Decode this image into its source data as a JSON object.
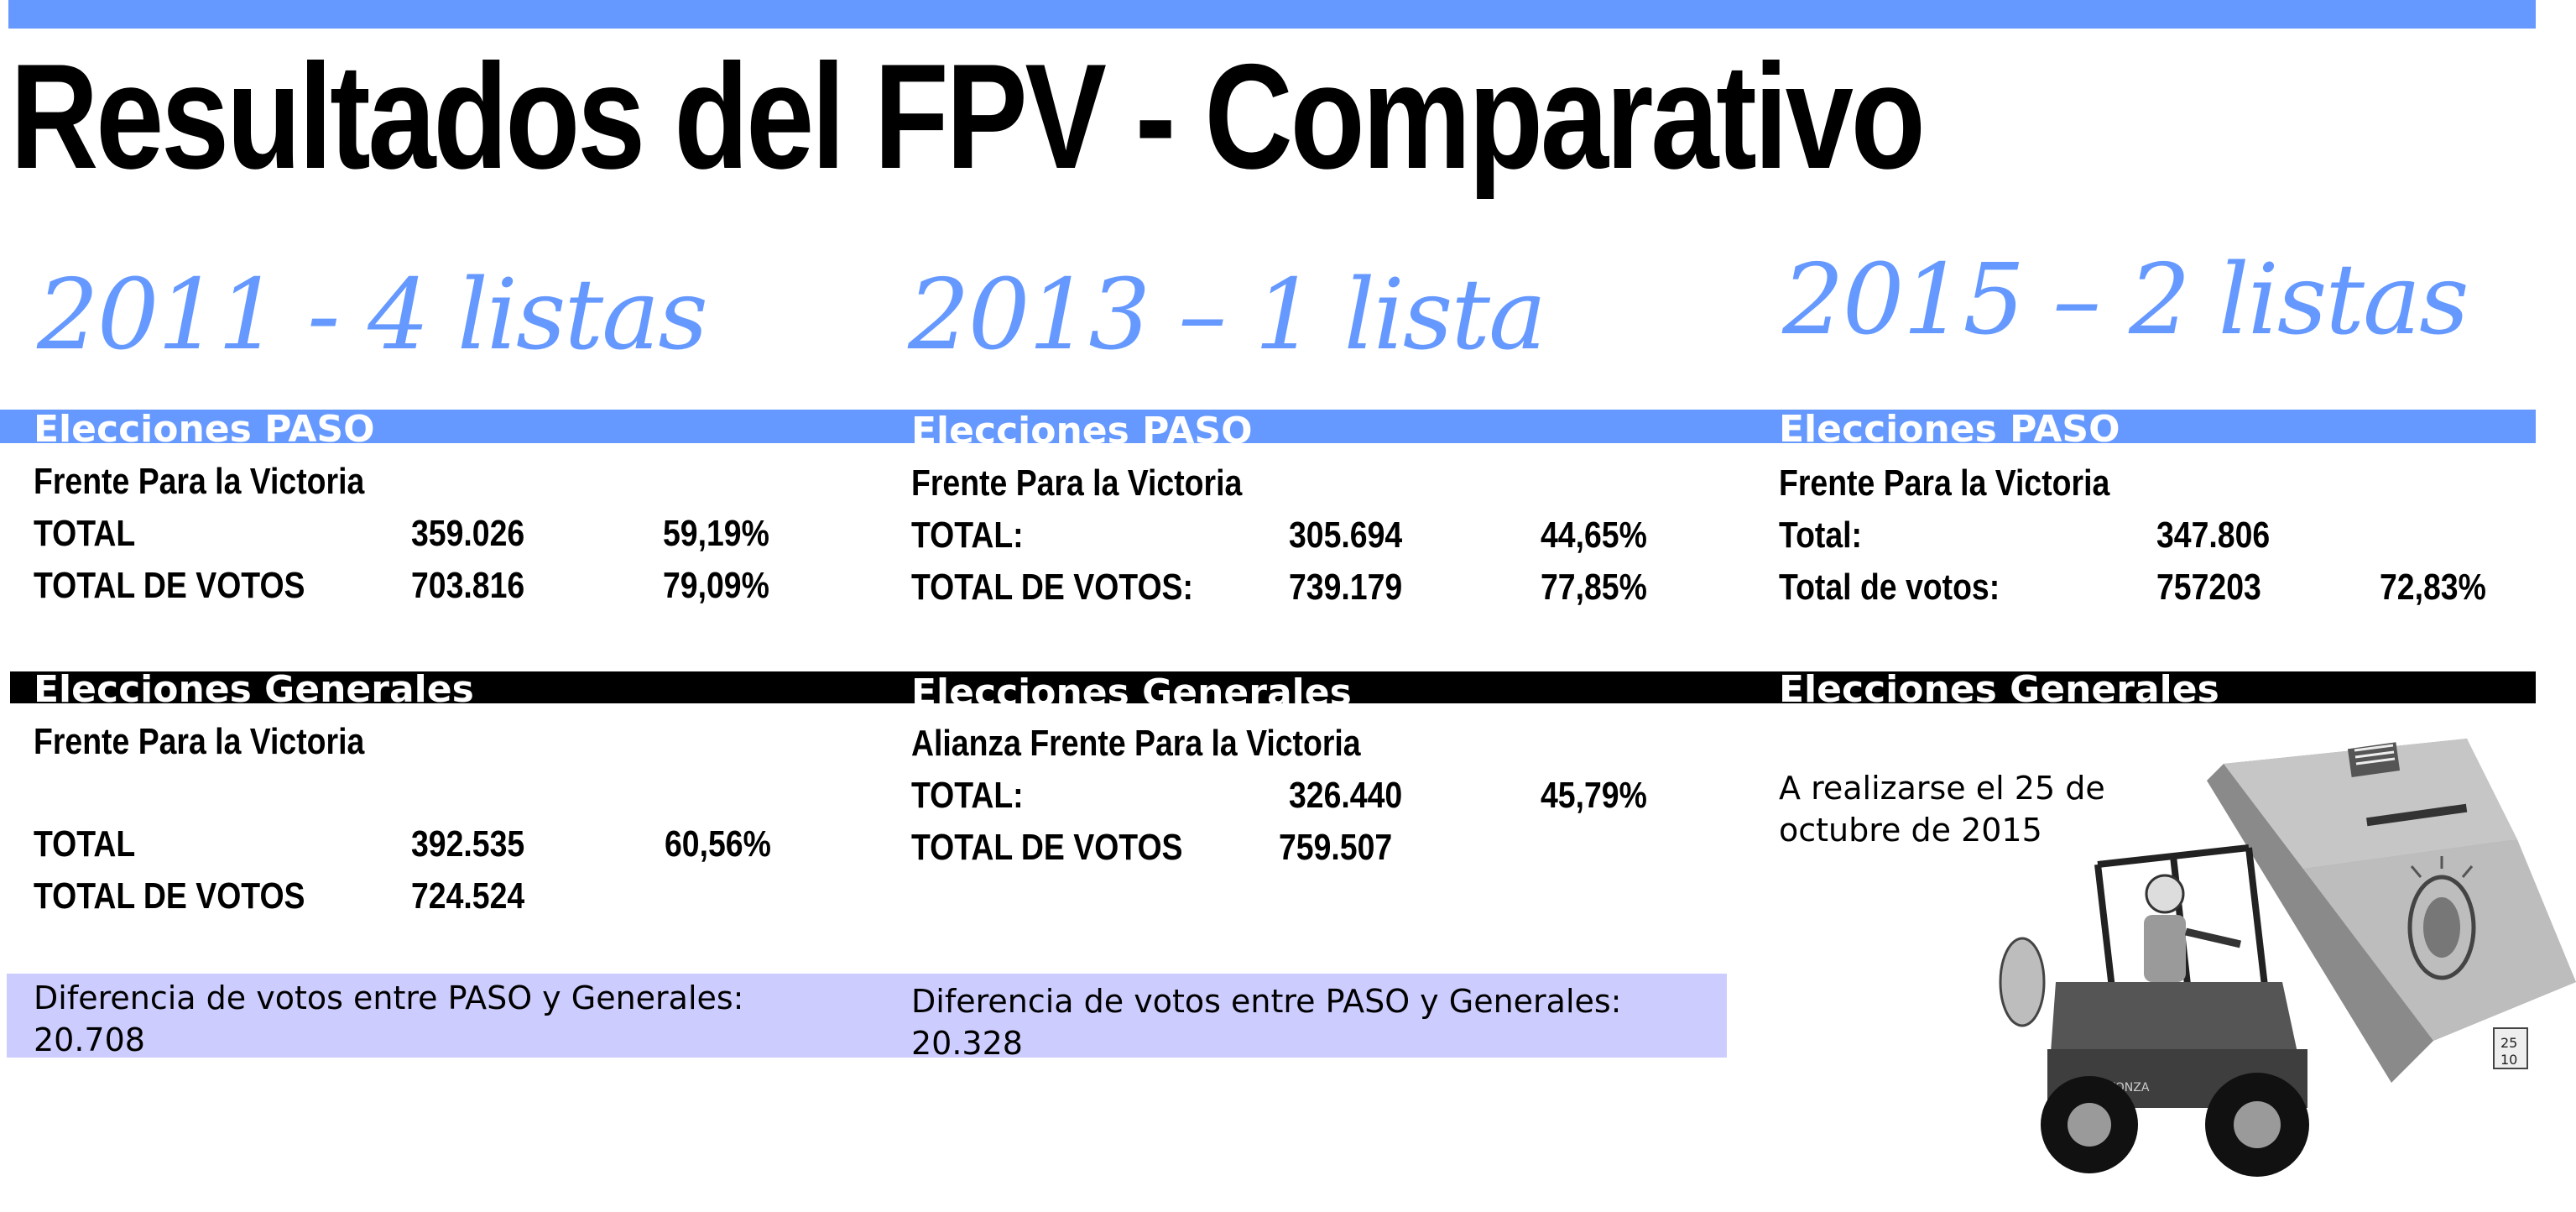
{
  "title": "Resultados del FPV - Comparativo",
  "colors": {
    "accent_blue": "#6699ff",
    "band_black": "#000000",
    "lilac": "#ccccff"
  },
  "columns": [
    {
      "heading": "2011 - 4 listas",
      "paso": {
        "band_label": "Elecciones PASO",
        "party": "Frente Para la Victoria",
        "rows": [
          {
            "label": "TOTAL",
            "value": "359.026",
            "percent": "59,19%"
          },
          {
            "label": "TOTAL DE VOTOS",
            "value": "703.816",
            "percent": "79,09%"
          }
        ]
      },
      "generales": {
        "band_label": "Elecciones Generales",
        "party": "Frente Para la Victoria",
        "rows": [
          {
            "label": "TOTAL",
            "value": "392.535",
            "percent": "60,56%"
          },
          {
            "label": "TOTAL DE VOTOS",
            "value": "724.524",
            "percent": ""
          }
        ]
      },
      "diferencia": "Diferencia de votos entre PASO y Generales: 20.708"
    },
    {
      "heading": "2013 – 1 lista",
      "paso": {
        "band_label": "Elecciones PASO",
        "party": "Frente Para la Victoria",
        "rows": [
          {
            "label": "TOTAL:",
            "value": "305.694",
            "percent": "44,65%"
          },
          {
            "label": "TOTAL DE VOTOS:",
            "value": "739.179",
            "percent": "77,85%"
          }
        ]
      },
      "generales": {
        "band_label": "Elecciones Generales",
        "party": "Alianza Frente Para la Victoria",
        "rows": [
          {
            "label": "TOTAL:",
            "value": "326.440",
            "percent": "45,79%"
          },
          {
            "label": "TOTAL DE VOTOS",
            "value": "759.507",
            "percent": ""
          }
        ]
      },
      "diferencia": "Diferencia de votos entre PASO y Generales: 20.328"
    },
    {
      "heading": "2015 – 2 listas",
      "paso": {
        "band_label": "Elecciones PASO",
        "party": "Frente Para la Victoria",
        "rows": [
          {
            "label": "Total:",
            "value": "347.806",
            "percent": ""
          },
          {
            "label": "Total de votos:",
            "value": "757203",
            "percent": "72,83%"
          }
        ]
      },
      "generales": {
        "band_label": "Elecciones Generales",
        "note": "A realizarse el 25 de octubre de 2015"
      }
    }
  ],
  "illustration": {
    "icon": "forklift-ballot-box-icon",
    "box_label_top": "25",
    "box_label_bottom": "10",
    "forklift_text": "GT-AUTONZA"
  }
}
